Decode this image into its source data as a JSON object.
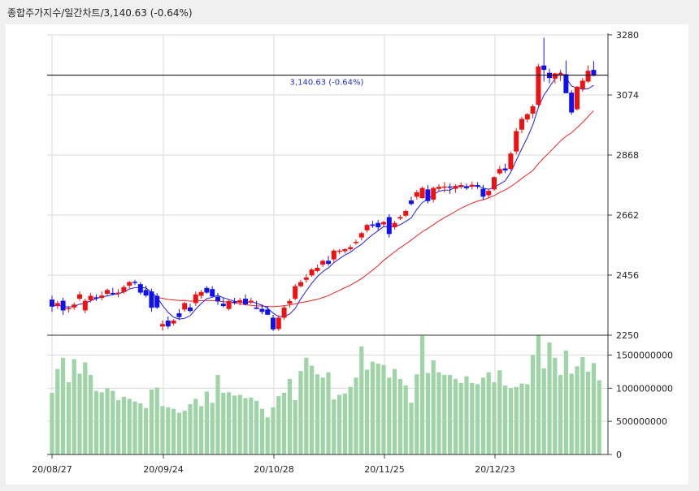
{
  "header": {
    "title": "종합주가지수/일간차트/3,140.63 (-0.64%)"
  },
  "chart_data": {
    "type": "candlestick",
    "title": "종합주가지수/일간차트/3,140.63 (-0.64%)",
    "price_axis": {
      "ylim": [
        2250,
        3280
      ],
      "ticks": [
        "3280",
        "3074",
        "2868",
        "2662",
        "2456",
        "2250"
      ]
    },
    "volume_axis": {
      "ylim": [
        0,
        1800000000
      ],
      "ticks": [
        "1500000000",
        "1000000000",
        "500000000",
        "0"
      ]
    },
    "x_tick_labels": [
      "20/08/27",
      "20/09/24",
      "20/10/28",
      "20/11/25",
      "20/12/23"
    ],
    "x_tick_index": [
      0,
      20,
      40,
      60,
      80
    ],
    "current_price_line": {
      "value": 3140.63,
      "label": "3,140.63 (-0.64%)"
    },
    "colors": {
      "up": "#ee1111",
      "down": "#1111ee",
      "ma5": "#2222dd",
      "ma20": "#ee2222",
      "volume": "#9fd4a7",
      "grid": "#d9d9d9"
    },
    "series": [
      {
        "name": "candles",
        "values": [
          [
            2372,
            2385,
            2330,
            2348
          ],
          [
            2350,
            2368,
            2340,
            2360
          ],
          [
            2368,
            2378,
            2320,
            2335
          ],
          [
            2340,
            2350,
            2328,
            2343
          ],
          [
            2345,
            2362,
            2337,
            2355
          ],
          [
            2375,
            2400,
            2368,
            2390
          ],
          [
            2335,
            2375,
            2325,
            2368
          ],
          [
            2370,
            2395,
            2362,
            2385
          ],
          [
            2380,
            2390,
            2368,
            2378
          ],
          [
            2378,
            2400,
            2370,
            2386
          ],
          [
            2392,
            2410,
            2385,
            2405
          ],
          [
            2395,
            2412,
            2386,
            2393
          ],
          [
            2392,
            2408,
            2380,
            2396
          ],
          [
            2398,
            2422,
            2392,
            2415
          ],
          [
            2420,
            2436,
            2410,
            2432
          ],
          [
            2433,
            2440,
            2422,
            2430
          ],
          [
            2425,
            2432,
            2389,
            2396
          ],
          [
            2405,
            2420,
            2380,
            2386
          ],
          [
            2400,
            2410,
            2330,
            2344
          ],
          [
            2385,
            2395,
            2340,
            2345
          ],
          [
            2280,
            2300,
            2266,
            2288
          ],
          [
            2300,
            2314,
            2272,
            2280
          ],
          [
            2290,
            2305,
            2283,
            2300
          ],
          [
            2325,
            2340,
            2302,
            2312
          ],
          [
            2338,
            2365,
            2330,
            2360
          ],
          [
            2345,
            2358,
            2328,
            2333
          ],
          [
            2360,
            2400,
            2350,
            2390
          ],
          [
            2385,
            2405,
            2375,
            2398
          ],
          [
            2412,
            2418,
            2392,
            2396
          ],
          [
            2408,
            2418,
            2380,
            2383
          ],
          [
            2382,
            2395,
            2354,
            2366
          ],
          [
            2358,
            2378,
            2345,
            2350
          ],
          [
            2340,
            2372,
            2335,
            2367
          ],
          [
            2365,
            2378,
            2355,
            2364
          ],
          [
            2362,
            2378,
            2352,
            2370
          ],
          [
            2375,
            2390,
            2352,
            2356
          ],
          [
            2362,
            2378,
            2357,
            2368
          ],
          [
            2345,
            2368,
            2340,
            2340
          ],
          [
            2340,
            2355,
            2322,
            2330
          ],
          [
            2338,
            2350,
            2322,
            2320
          ],
          [
            2310,
            2320,
            2265,
            2270
          ],
          [
            2271,
            2318,
            2265,
            2310
          ],
          [
            2310,
            2350,
            2302,
            2345
          ],
          [
            2358,
            2375,
            2344,
            2367
          ],
          [
            2375,
            2425,
            2370,
            2418
          ],
          [
            2418,
            2440,
            2414,
            2432
          ],
          [
            2440,
            2460,
            2430,
            2448
          ],
          [
            2455,
            2480,
            2450,
            2475
          ],
          [
            2470,
            2492,
            2466,
            2481
          ],
          [
            2492,
            2510,
            2484,
            2505
          ],
          [
            2505,
            2522,
            2488,
            2495
          ],
          [
            2510,
            2545,
            2500,
            2540
          ],
          [
            2538,
            2546,
            2528,
            2540
          ],
          [
            2538,
            2548,
            2530,
            2545
          ],
          [
            2545,
            2560,
            2539,
            2552
          ],
          [
            2568,
            2578,
            2560,
            2570
          ],
          [
            2585,
            2605,
            2575,
            2600
          ],
          [
            2610,
            2632,
            2602,
            2628
          ],
          [
            2630,
            2642,
            2618,
            2625
          ],
          [
            2635,
            2645,
            2610,
            2620
          ],
          [
            2630,
            2642,
            2624,
            2638
          ],
          [
            2655,
            2665,
            2585,
            2597
          ],
          [
            2620,
            2642,
            2612,
            2635
          ],
          [
            2650,
            2662,
            2645,
            2655
          ],
          [
            2660,
            2680,
            2655,
            2676
          ],
          [
            2712,
            2725,
            2695,
            2700
          ],
          [
            2725,
            2748,
            2715,
            2740
          ],
          [
            2720,
            2760,
            2718,
            2755
          ],
          [
            2750,
            2765,
            2702,
            2710
          ],
          [
            2715,
            2760,
            2705,
            2755
          ],
          [
            2752,
            2768,
            2745,
            2759
          ],
          [
            2760,
            2775,
            2740,
            2760
          ],
          [
            2760,
            2770,
            2735,
            2756
          ],
          [
            2752,
            2768,
            2738,
            2762
          ],
          [
            2762,
            2774,
            2752,
            2765
          ],
          [
            2758,
            2770,
            2748,
            2756
          ],
          [
            2760,
            2777,
            2750,
            2766
          ],
          [
            2765,
            2775,
            2752,
            2760
          ],
          [
            2752,
            2766,
            2715,
            2725
          ],
          [
            2730,
            2752,
            2722,
            2745
          ],
          [
            2750,
            2795,
            2745,
            2792
          ],
          [
            2805,
            2830,
            2800,
            2820
          ],
          [
            2822,
            2838,
            2806,
            2815
          ],
          [
            2820,
            2880,
            2815,
            2873
          ],
          [
            2880,
            2960,
            2870,
            2950
          ],
          [
            2955,
            3000,
            2943,
            2992
          ],
          [
            2990,
            3012,
            2980,
            3008
          ],
          [
            3010,
            3042,
            2994,
            3035
          ],
          [
            3040,
            3180,
            3035,
            3172
          ],
          [
            3175,
            3270,
            3120,
            3160
          ],
          [
            3150,
            3164,
            3114,
            3132
          ],
          [
            3130,
            3150,
            3114,
            3148
          ],
          [
            3142,
            3160,
            3122,
            3148
          ],
          [
            3145,
            3192,
            3080,
            3080
          ],
          [
            3082,
            3090,
            3006,
            3014
          ],
          [
            3025,
            3105,
            3020,
            3102
          ],
          [
            3095,
            3132,
            3085,
            3123
          ],
          [
            3120,
            3175,
            3115,
            3157
          ],
          [
            3160,
            3190,
            3138,
            3140
          ]
        ]
      },
      {
        "name": "volume",
        "values": [
          930,
          1290,
          1460,
          1090,
          1440,
          1220,
          1390,
          1200,
          960,
          940,
          1000,
          960,
          820,
          870,
          840,
          800,
          770,
          700,
          980,
          1010,
          730,
          710,
          690,
          630,
          660,
          760,
          840,
          730,
          950,
          780,
          1200,
          930,
          940,
          890,
          900,
          850,
          860,
          810,
          690,
          560,
          710,
          880,
          930,
          1140,
          820,
          1260,
          1460,
          1340,
          1210,
          1160,
          1240,
          830,
          900,
          920,
          1020,
          1160,
          1630,
          1280,
          1400,
          1370,
          1350,
          1160,
          1290,
          1140,
          1040,
          780,
          1210,
          1790,
          1230,
          1420,
          1240,
          1200,
          1200,
          1140,
          1080,
          1180,
          1080,
          1060,
          1160,
          1240,
          1090,
          1270,
          1040,
          1000,
          1020,
          1070,
          1060,
          1500,
          1800,
          1300,
          1690,
          1460,
          1200,
          1570,
          1220,
          1330,
          1470,
          1250,
          1380,
          1120
        ]
      }
    ]
  }
}
